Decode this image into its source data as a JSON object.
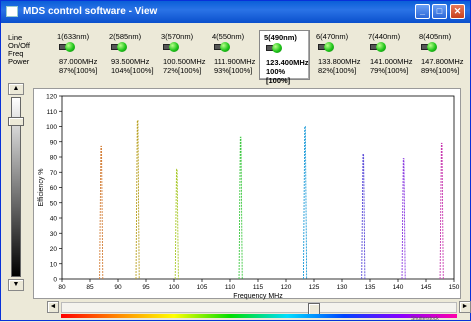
{
  "window": {
    "title": "MDS control software - View",
    "min": "_",
    "max": "□",
    "close": "✕"
  },
  "row_labels": [
    "Line",
    "On/Off",
    "Freq",
    "Power"
  ],
  "channels": [
    {
      "name": "1(633nm)",
      "freq": "87.000MHz",
      "power": "87%[100%]",
      "on": true,
      "selected": false
    },
    {
      "name": "2(585nm)",
      "freq": "93.500MHz",
      "power": "104%[100%]",
      "on": true,
      "selected": false
    },
    {
      "name": "3(570nm)",
      "freq": "100.500MHz",
      "power": "72%[100%]",
      "on": true,
      "selected": false
    },
    {
      "name": "4(550nm)",
      "freq": "111.900MHz",
      "power": "93%[100%]",
      "on": true,
      "selected": false
    },
    {
      "name": "5(490nm)",
      "freq": "123.400MHz",
      "power": "100%[100%]",
      "on": true,
      "selected": true
    },
    {
      "name": "6(470nm)",
      "freq": "133.800MHz",
      "power": "82%[100%]",
      "on": true,
      "selected": false
    },
    {
      "name": "7(440nm)",
      "freq": "141.000MHz",
      "power": "79%[100%]",
      "on": true,
      "selected": false
    },
    {
      "name": "8(405nm)",
      "freq": "147.800MHz",
      "power": "89%[100%]",
      "on": true,
      "selected": false
    }
  ],
  "vscroll": {
    "up": "▲",
    "down": "▼"
  },
  "hscroll": {
    "left": "◄",
    "right": "►"
  },
  "watermark": "Shutterstock",
  "chart_data": {
    "type": "line",
    "xlabel": "Frequency MHz",
    "ylabel": "Efficiency %",
    "xlim": [
      80,
      150
    ],
    "ylim": [
      0,
      120
    ],
    "xticks": [
      80,
      85,
      90,
      95,
      100,
      105,
      110,
      115,
      120,
      125,
      130,
      135,
      140,
      145,
      150
    ],
    "yticks": [
      0,
      10,
      20,
      30,
      40,
      50,
      60,
      70,
      80,
      90,
      100,
      110,
      120
    ],
    "series": [
      {
        "x": 87.0,
        "peak": 87,
        "color": "#d4803a"
      },
      {
        "x": 93.5,
        "peak": 104,
        "color": "#b8a020"
      },
      {
        "x": 100.5,
        "peak": 72,
        "color": "#a8c828"
      },
      {
        "x": 111.9,
        "peak": 93,
        "color": "#3cc840"
      },
      {
        "x": 123.4,
        "peak": 100,
        "color": "#1a9ad8"
      },
      {
        "x": 133.8,
        "peak": 82,
        "color": "#5a4ad8"
      },
      {
        "x": 141.0,
        "peak": 79,
        "color": "#8a3ae0"
      },
      {
        "x": 147.8,
        "peak": 89,
        "color": "#c83ab0"
      }
    ]
  }
}
